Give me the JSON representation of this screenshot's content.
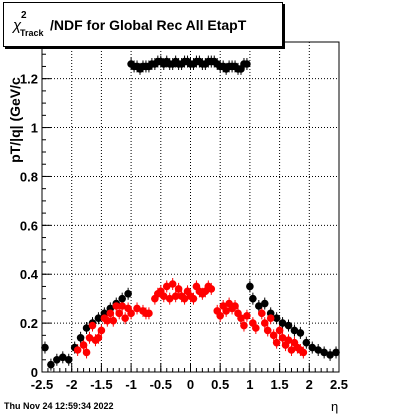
{
  "chart_data": {
    "type": "scatter",
    "title": {
      "chi": "χ",
      "sup": "2",
      "sub": "Track",
      "rest": "/NDF for Global Rec All EtapT"
    },
    "xlabel": "η",
    "ylabel": "pT/|q| (GeV/c",
    "xlim": [
      -2.5,
      2.5
    ],
    "ylim": [
      0,
      1.35
    ],
    "x_ticks": [
      "-2.5",
      "-2",
      "-1.5",
      "-1",
      "-0.5",
      "0",
      "0.5",
      "1",
      "1.5",
      "2",
      "2.5"
    ],
    "y_ticks": [
      "0",
      "0.2",
      "0.4",
      "0.6",
      "0.8",
      "1",
      "1.2"
    ],
    "grid": true,
    "series": [
      {
        "color": "#000000",
        "points": [
          [
            -2.45,
            0.1
          ],
          [
            -2.35,
            0.03
          ],
          [
            -2.25,
            0.05
          ],
          [
            -2.15,
            0.06
          ],
          [
            -2.05,
            0.05
          ],
          [
            -1.95,
            0.1
          ],
          [
            -1.85,
            0.14
          ],
          [
            -1.75,
            0.18
          ],
          [
            -1.65,
            0.2
          ],
          [
            -1.55,
            0.22
          ],
          [
            -1.45,
            0.24
          ],
          [
            -1.35,
            0.26
          ],
          [
            -1.25,
            0.28
          ],
          [
            -1.15,
            0.3
          ],
          [
            -1.05,
            0.32
          ],
          [
            -1.0,
            1.26
          ],
          [
            -0.95,
            1.25
          ],
          [
            -0.9,
            1.25
          ],
          [
            -0.85,
            1.24
          ],
          [
            -0.8,
            1.25
          ],
          [
            -0.75,
            1.25
          ],
          [
            -0.7,
            1.25
          ],
          [
            -0.65,
            1.26
          ],
          [
            -0.6,
            1.26
          ],
          [
            -0.55,
            1.27
          ],
          [
            -0.5,
            1.27
          ],
          [
            -0.45,
            1.26
          ],
          [
            -0.4,
            1.27
          ],
          [
            -0.35,
            1.26
          ],
          [
            -0.3,
            1.26
          ],
          [
            -0.25,
            1.27
          ],
          [
            -0.2,
            1.26
          ],
          [
            -0.15,
            1.26
          ],
          [
            -0.1,
            1.27
          ],
          [
            -0.05,
            1.27
          ],
          [
            0.0,
            1.26
          ],
          [
            0.05,
            1.26
          ],
          [
            0.1,
            1.27
          ],
          [
            0.15,
            1.27
          ],
          [
            0.2,
            1.26
          ],
          [
            0.25,
            1.26
          ],
          [
            0.3,
            1.27
          ],
          [
            0.35,
            1.27
          ],
          [
            0.4,
            1.27
          ],
          [
            0.45,
            1.26
          ],
          [
            0.5,
            1.25
          ],
          [
            0.55,
            1.25
          ],
          [
            0.6,
            1.24
          ],
          [
            0.65,
            1.25
          ],
          [
            0.7,
            1.25
          ],
          [
            0.75,
            1.25
          ],
          [
            0.8,
            1.24
          ],
          [
            0.85,
            1.24
          ],
          [
            0.9,
            1.26
          ],
          [
            0.95,
            1.26
          ],
          [
            1.0,
            0.35
          ],
          [
            1.05,
            0.3
          ],
          [
            1.15,
            0.27
          ],
          [
            1.25,
            0.28
          ],
          [
            1.35,
            0.24
          ],
          [
            1.45,
            0.22
          ],
          [
            1.55,
            0.2
          ],
          [
            1.65,
            0.19
          ],
          [
            1.75,
            0.17
          ],
          [
            1.85,
            0.16
          ],
          [
            1.95,
            0.12
          ],
          [
            2.05,
            0.1
          ],
          [
            2.15,
            0.09
          ],
          [
            2.25,
            0.08
          ],
          [
            2.35,
            0.07
          ],
          [
            2.45,
            0.08
          ]
        ]
      },
      {
        "color": "#ff0000",
        "points": [
          [
            -1.9,
            0.09
          ],
          [
            -1.8,
            0.11
          ],
          [
            -1.75,
            0.08
          ],
          [
            -1.7,
            0.14
          ],
          [
            -1.65,
            0.19
          ],
          [
            -1.6,
            0.13
          ],
          [
            -1.55,
            0.14
          ],
          [
            -1.5,
            0.17
          ],
          [
            -1.45,
            0.22
          ],
          [
            -1.4,
            0.21
          ],
          [
            -1.35,
            0.24
          ],
          [
            -1.3,
            0.21
          ],
          [
            -1.25,
            0.27
          ],
          [
            -1.2,
            0.24
          ],
          [
            -1.15,
            0.27
          ],
          [
            -1.1,
            0.22
          ],
          [
            -1.05,
            0.26
          ],
          [
            -1.0,
            0.24
          ],
          [
            -0.9,
            0.26
          ],
          [
            -0.8,
            0.25
          ],
          [
            -0.75,
            0.24
          ],
          [
            -0.7,
            0.24
          ],
          [
            -0.6,
            0.3
          ],
          [
            -0.55,
            0.32
          ],
          [
            -0.5,
            0.33
          ],
          [
            -0.45,
            0.31
          ],
          [
            -0.4,
            0.35
          ],
          [
            -0.35,
            0.3
          ],
          [
            -0.3,
            0.36
          ],
          [
            -0.25,
            0.31
          ],
          [
            -0.2,
            0.34
          ],
          [
            -0.15,
            0.31
          ],
          [
            -0.1,
            0.3
          ],
          [
            -0.05,
            0.33
          ],
          [
            0.0,
            0.31
          ],
          [
            0.05,
            0.3
          ],
          [
            0.1,
            0.35
          ],
          [
            0.15,
            0.33
          ],
          [
            0.2,
            0.32
          ],
          [
            0.25,
            0.33
          ],
          [
            0.3,
            0.35
          ],
          [
            0.35,
            0.34
          ],
          [
            0.45,
            0.25
          ],
          [
            0.5,
            0.23
          ],
          [
            0.55,
            0.27
          ],
          [
            0.6,
            0.25
          ],
          [
            0.65,
            0.28
          ],
          [
            0.7,
            0.26
          ],
          [
            0.75,
            0.27
          ],
          [
            0.8,
            0.24
          ],
          [
            0.85,
            0.22
          ],
          [
            0.9,
            0.19
          ],
          [
            0.95,
            0.23
          ],
          [
            1.05,
            0.2
          ],
          [
            1.1,
            0.18
          ],
          [
            1.2,
            0.24
          ],
          [
            1.25,
            0.2
          ],
          [
            1.3,
            0.17
          ],
          [
            1.35,
            0.22
          ],
          [
            1.4,
            0.15
          ],
          [
            1.45,
            0.12
          ],
          [
            1.5,
            0.17
          ],
          [
            1.55,
            0.14
          ],
          [
            1.6,
            0.11
          ],
          [
            1.65,
            0.13
          ],
          [
            1.7,
            0.09
          ],
          [
            1.75,
            0.12
          ],
          [
            1.8,
            0.1
          ],
          [
            1.85,
            0.09
          ],
          [
            1.9,
            0.08
          ]
        ]
      }
    ]
  },
  "footer": {
    "timestamp": "Thu Nov 24 12:59:34 2022"
  }
}
